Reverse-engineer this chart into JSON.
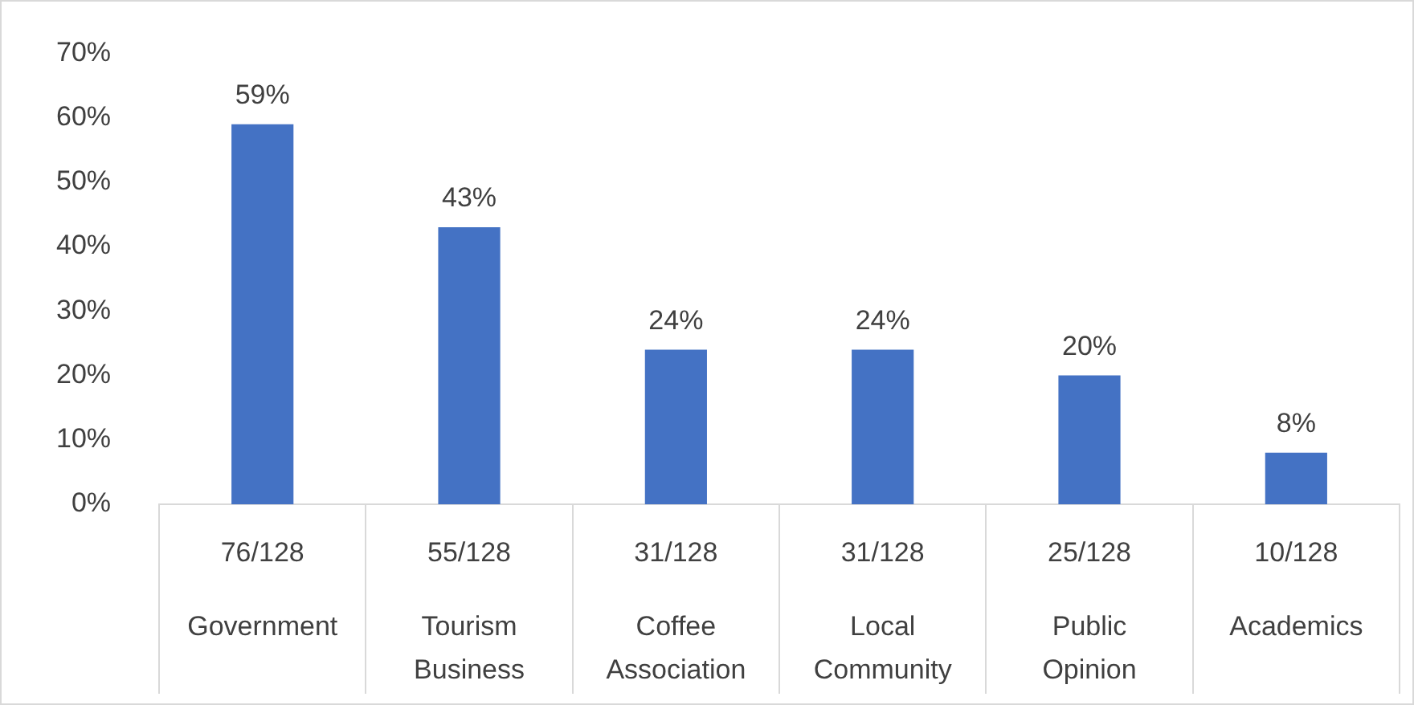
{
  "chart_data": {
    "type": "bar",
    "categories": [
      "Government",
      "Tourism Business",
      "Coffee Association",
      "Local Community",
      "Public Opinion",
      "Academics"
    ],
    "values": [
      59,
      43,
      24,
      24,
      20,
      8
    ],
    "value_labels": [
      "59%",
      "43%",
      "24%",
      "24%",
      "20%",
      "8%"
    ],
    "color": "#4472c4",
    "ylim": [
      0,
      70
    ],
    "yticks": [
      {
        "value": 0,
        "label": "0%"
      },
      {
        "value": 10,
        "label": "10%"
      },
      {
        "value": 20,
        "label": "20%"
      },
      {
        "value": 30,
        "label": "30%"
      },
      {
        "value": 40,
        "label": "40%"
      },
      {
        "value": 50,
        "label": "50%"
      },
      {
        "value": 60,
        "label": "60%"
      },
      {
        "value": 70,
        "label": "70%"
      }
    ],
    "annotations": [
      "76/128",
      "55/128",
      "31/128",
      "31/128",
      "25/128",
      "10/128"
    ],
    "legend": false
  }
}
